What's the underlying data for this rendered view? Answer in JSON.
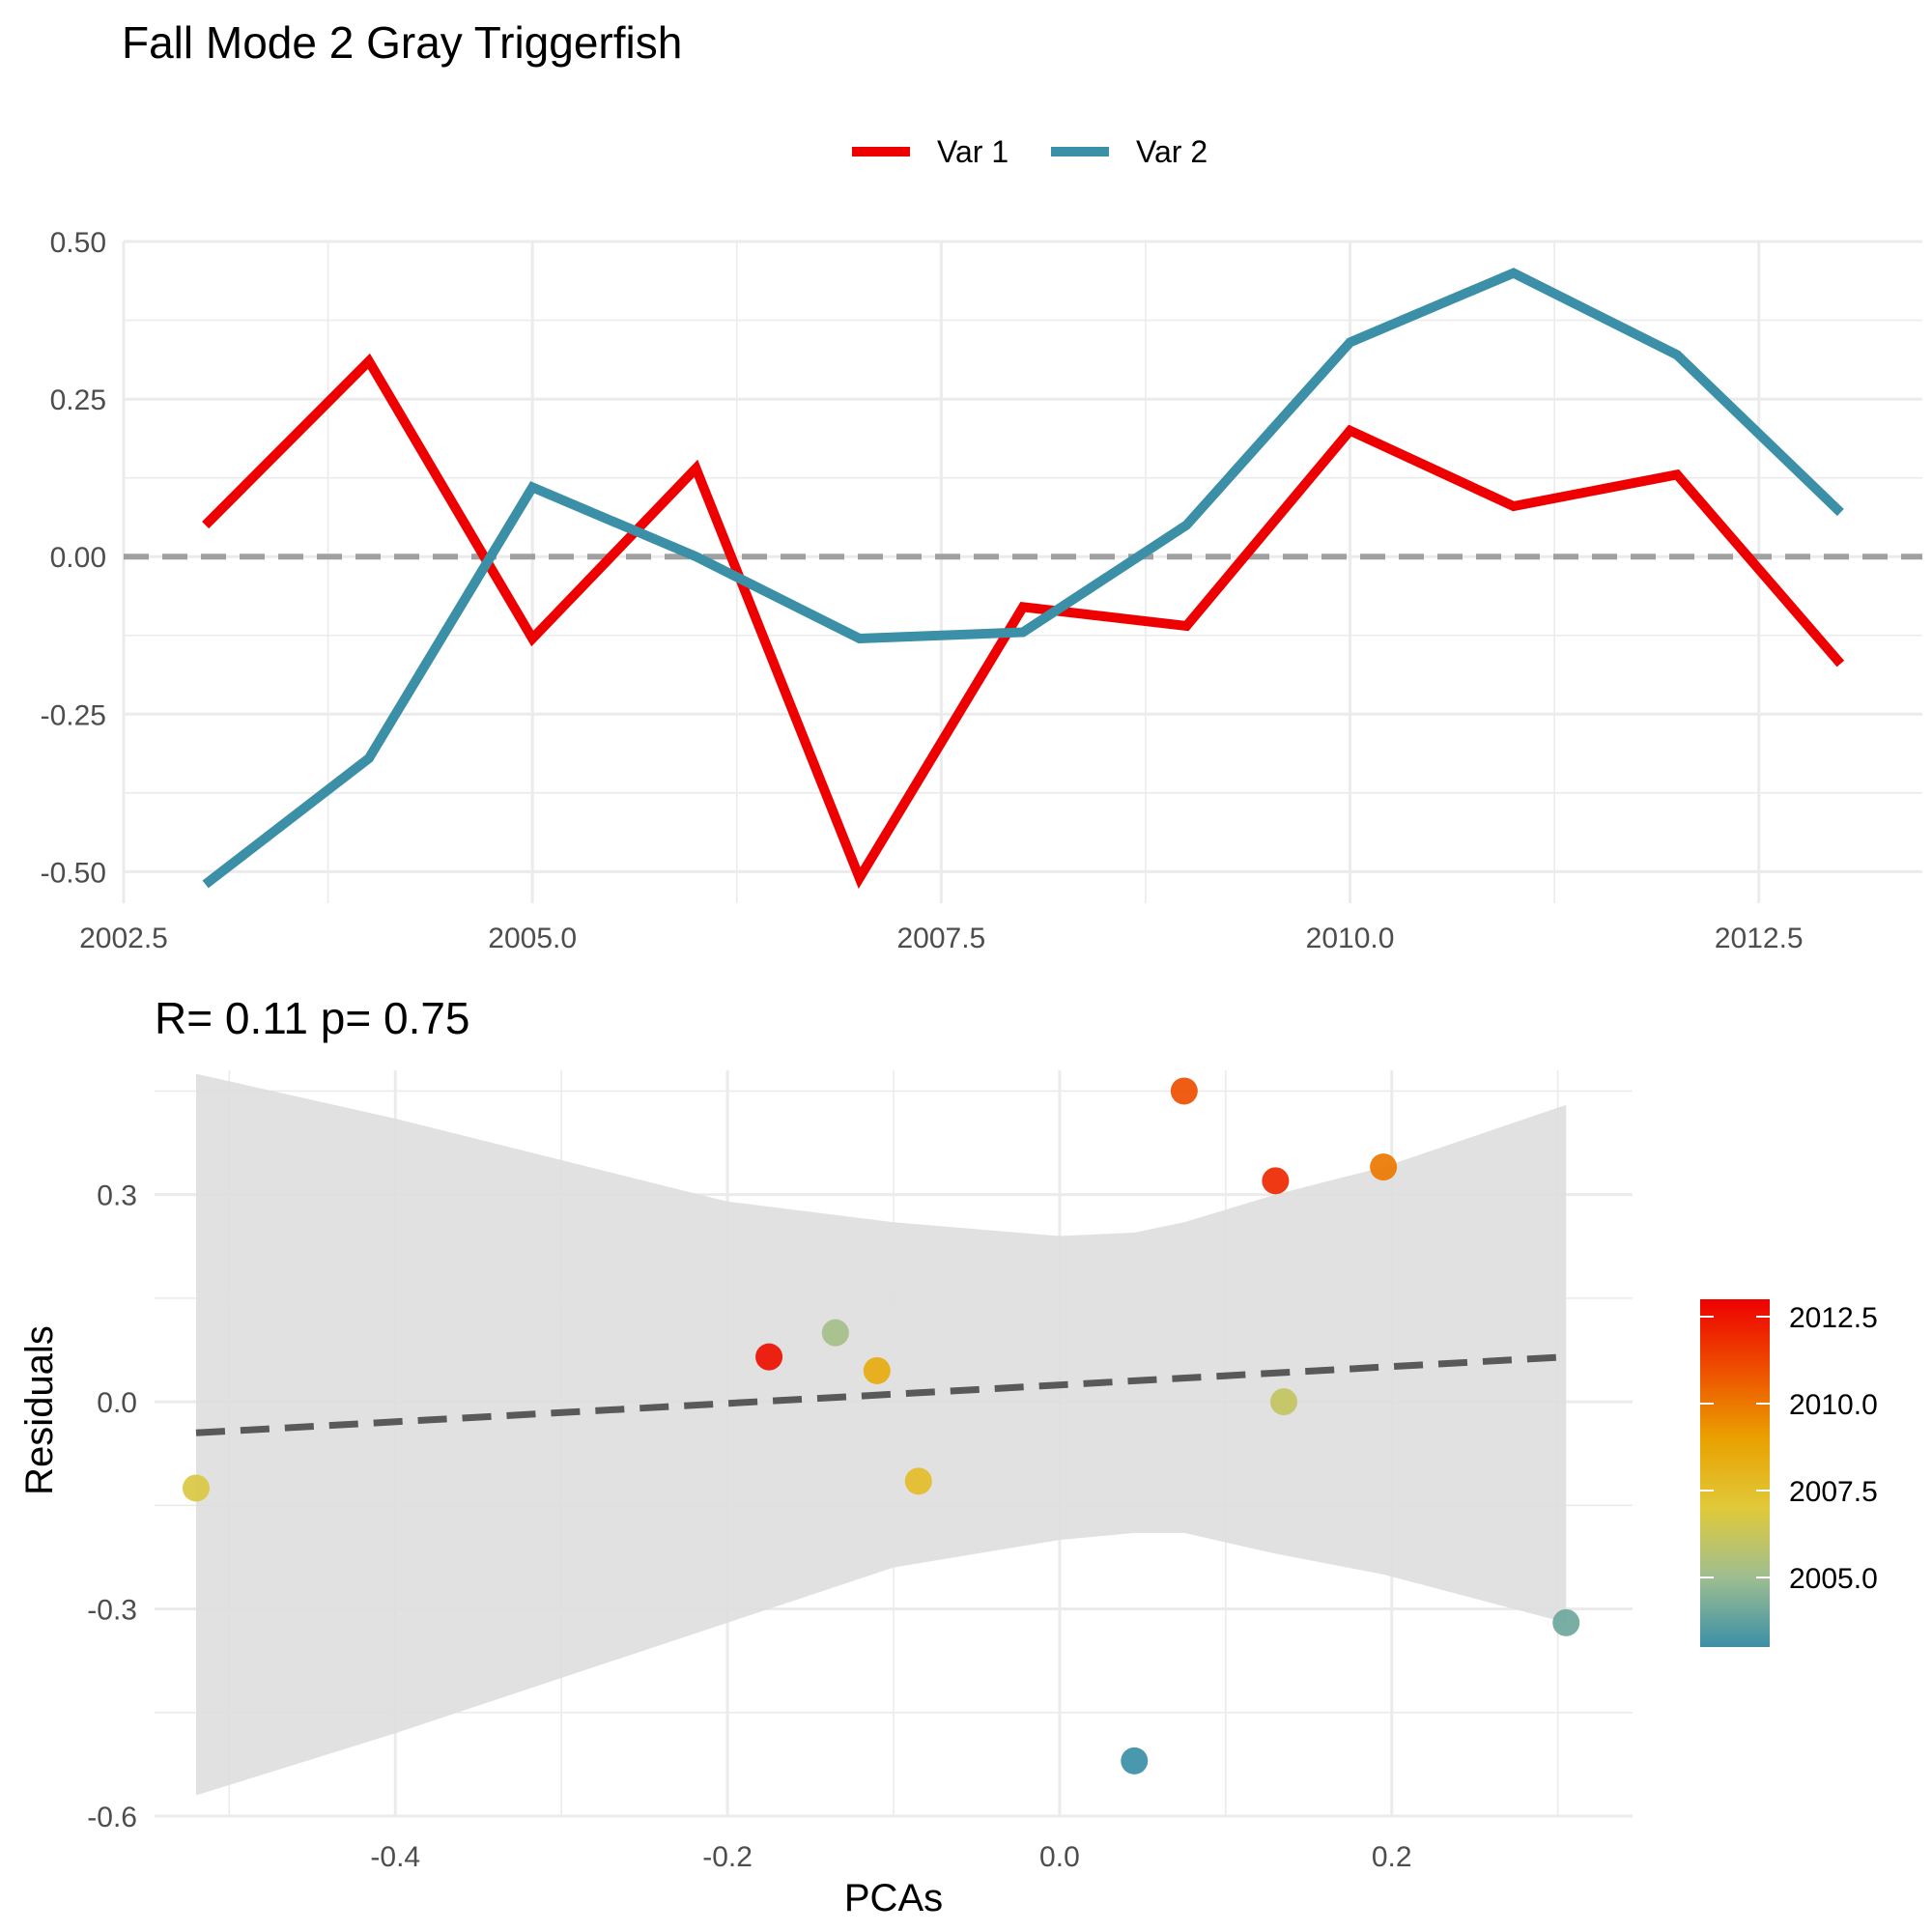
{
  "figure_title": "Fall Mode 2 Gray Triggerfish",
  "chart_data": [
    {
      "type": "line",
      "title": "",
      "xlabel": "",
      "ylabel": "",
      "x": [
        2003,
        2004,
        2005,
        2006,
        2007,
        2008,
        2009,
        2010,
        2011,
        2012,
        2013
      ],
      "series": [
        {
          "name": "Var 1",
          "color": "#EE0000",
          "values": [
            0.05,
            0.31,
            -0.13,
            0.14,
            -0.51,
            -0.08,
            -0.11,
            0.2,
            0.08,
            0.13,
            -0.17
          ]
        },
        {
          "name": "Var 2",
          "color": "#3B8FA6",
          "values": [
            -0.52,
            -0.32,
            0.11,
            0.0,
            -0.13,
            -0.12,
            0.05,
            0.34,
            0.45,
            0.32,
            0.07
          ]
        }
      ],
      "reference_line": {
        "y": 0,
        "style": "dashed",
        "color": "#A0A0A0"
      },
      "xlim": [
        2002.5,
        2013.5
      ],
      "ylim": [
        -0.55,
        0.5
      ],
      "xticks": [
        "2002.5",
        "2005.0",
        "2007.5",
        "2010.0",
        "2012.5"
      ],
      "yticks": [
        "-0.50",
        "-0.25",
        "0.00",
        "0.25",
        "0.50"
      ],
      "legend": {
        "placement": "top",
        "entries": [
          "Var 1",
          "Var 2"
        ]
      },
      "grid": true
    },
    {
      "type": "scatter",
      "title": "R= 0.11  p= 0.75",
      "xlabel": "PCAs",
      "ylabel": "Residuals",
      "points": [
        {
          "x": -0.52,
          "y": -0.125,
          "year": 2006.8
        },
        {
          "x": -0.175,
          "y": 0.065,
          "year": 2012.6
        },
        {
          "x": -0.135,
          "y": 0.1,
          "year": 2005.2
        },
        {
          "x": -0.11,
          "y": 0.045,
          "year": 2008.5
        },
        {
          "x": -0.085,
          "y": -0.115,
          "year": 2007.6
        },
        {
          "x": 0.045,
          "y": -0.52,
          "year": 2003.0
        },
        {
          "x": 0.075,
          "y": 0.45,
          "year": 2011.0
        },
        {
          "x": 0.13,
          "y": 0.32,
          "year": 2012.0
        },
        {
          "x": 0.135,
          "y": 0.0,
          "year": 2006.1
        },
        {
          "x": 0.195,
          "y": 0.34,
          "year": 2010.0
        },
        {
          "x": 0.305,
          "y": -0.32,
          "year": 2004.0
        }
      ],
      "fit_line": {
        "x": [
          -0.52,
          0.305
        ],
        "y": [
          -0.045,
          0.065
        ],
        "style": "dashed",
        "color": "#595959"
      },
      "confidence_band": {
        "x": [
          -0.52,
          -0.4,
          -0.3,
          -0.2,
          -0.1,
          0.0,
          0.045,
          0.075,
          0.13,
          0.195,
          0.305
        ],
        "lower": [
          -0.57,
          -0.48,
          -0.4,
          -0.32,
          -0.24,
          -0.2,
          -0.19,
          -0.19,
          -0.22,
          -0.25,
          -0.32
        ],
        "upper": [
          0.475,
          0.41,
          0.35,
          0.29,
          0.26,
          0.24,
          0.245,
          0.26,
          0.3,
          0.34,
          0.43
        ],
        "color": "#DEDEDE"
      },
      "xlim": [
        -0.545,
        0.345
      ],
      "ylim": [
        -0.6,
        0.48
      ],
      "xticks": [
        "-0.4",
        "-0.2",
        "0.0",
        "0.2"
      ],
      "yticks": [
        "-0.6",
        "-0.3",
        "0.0",
        "0.3"
      ],
      "colorbar": {
        "placement": "right",
        "range": [
          2003,
          2013
        ],
        "ticks": [
          "2005.0",
          "2007.5",
          "2010.0",
          "2012.5"
        ],
        "colors": [
          "#3B8FA6",
          "#9EBE91",
          "#E1C93A",
          "#E9A100",
          "#EE4E00",
          "#EE0000"
        ]
      },
      "grid": true
    }
  ]
}
